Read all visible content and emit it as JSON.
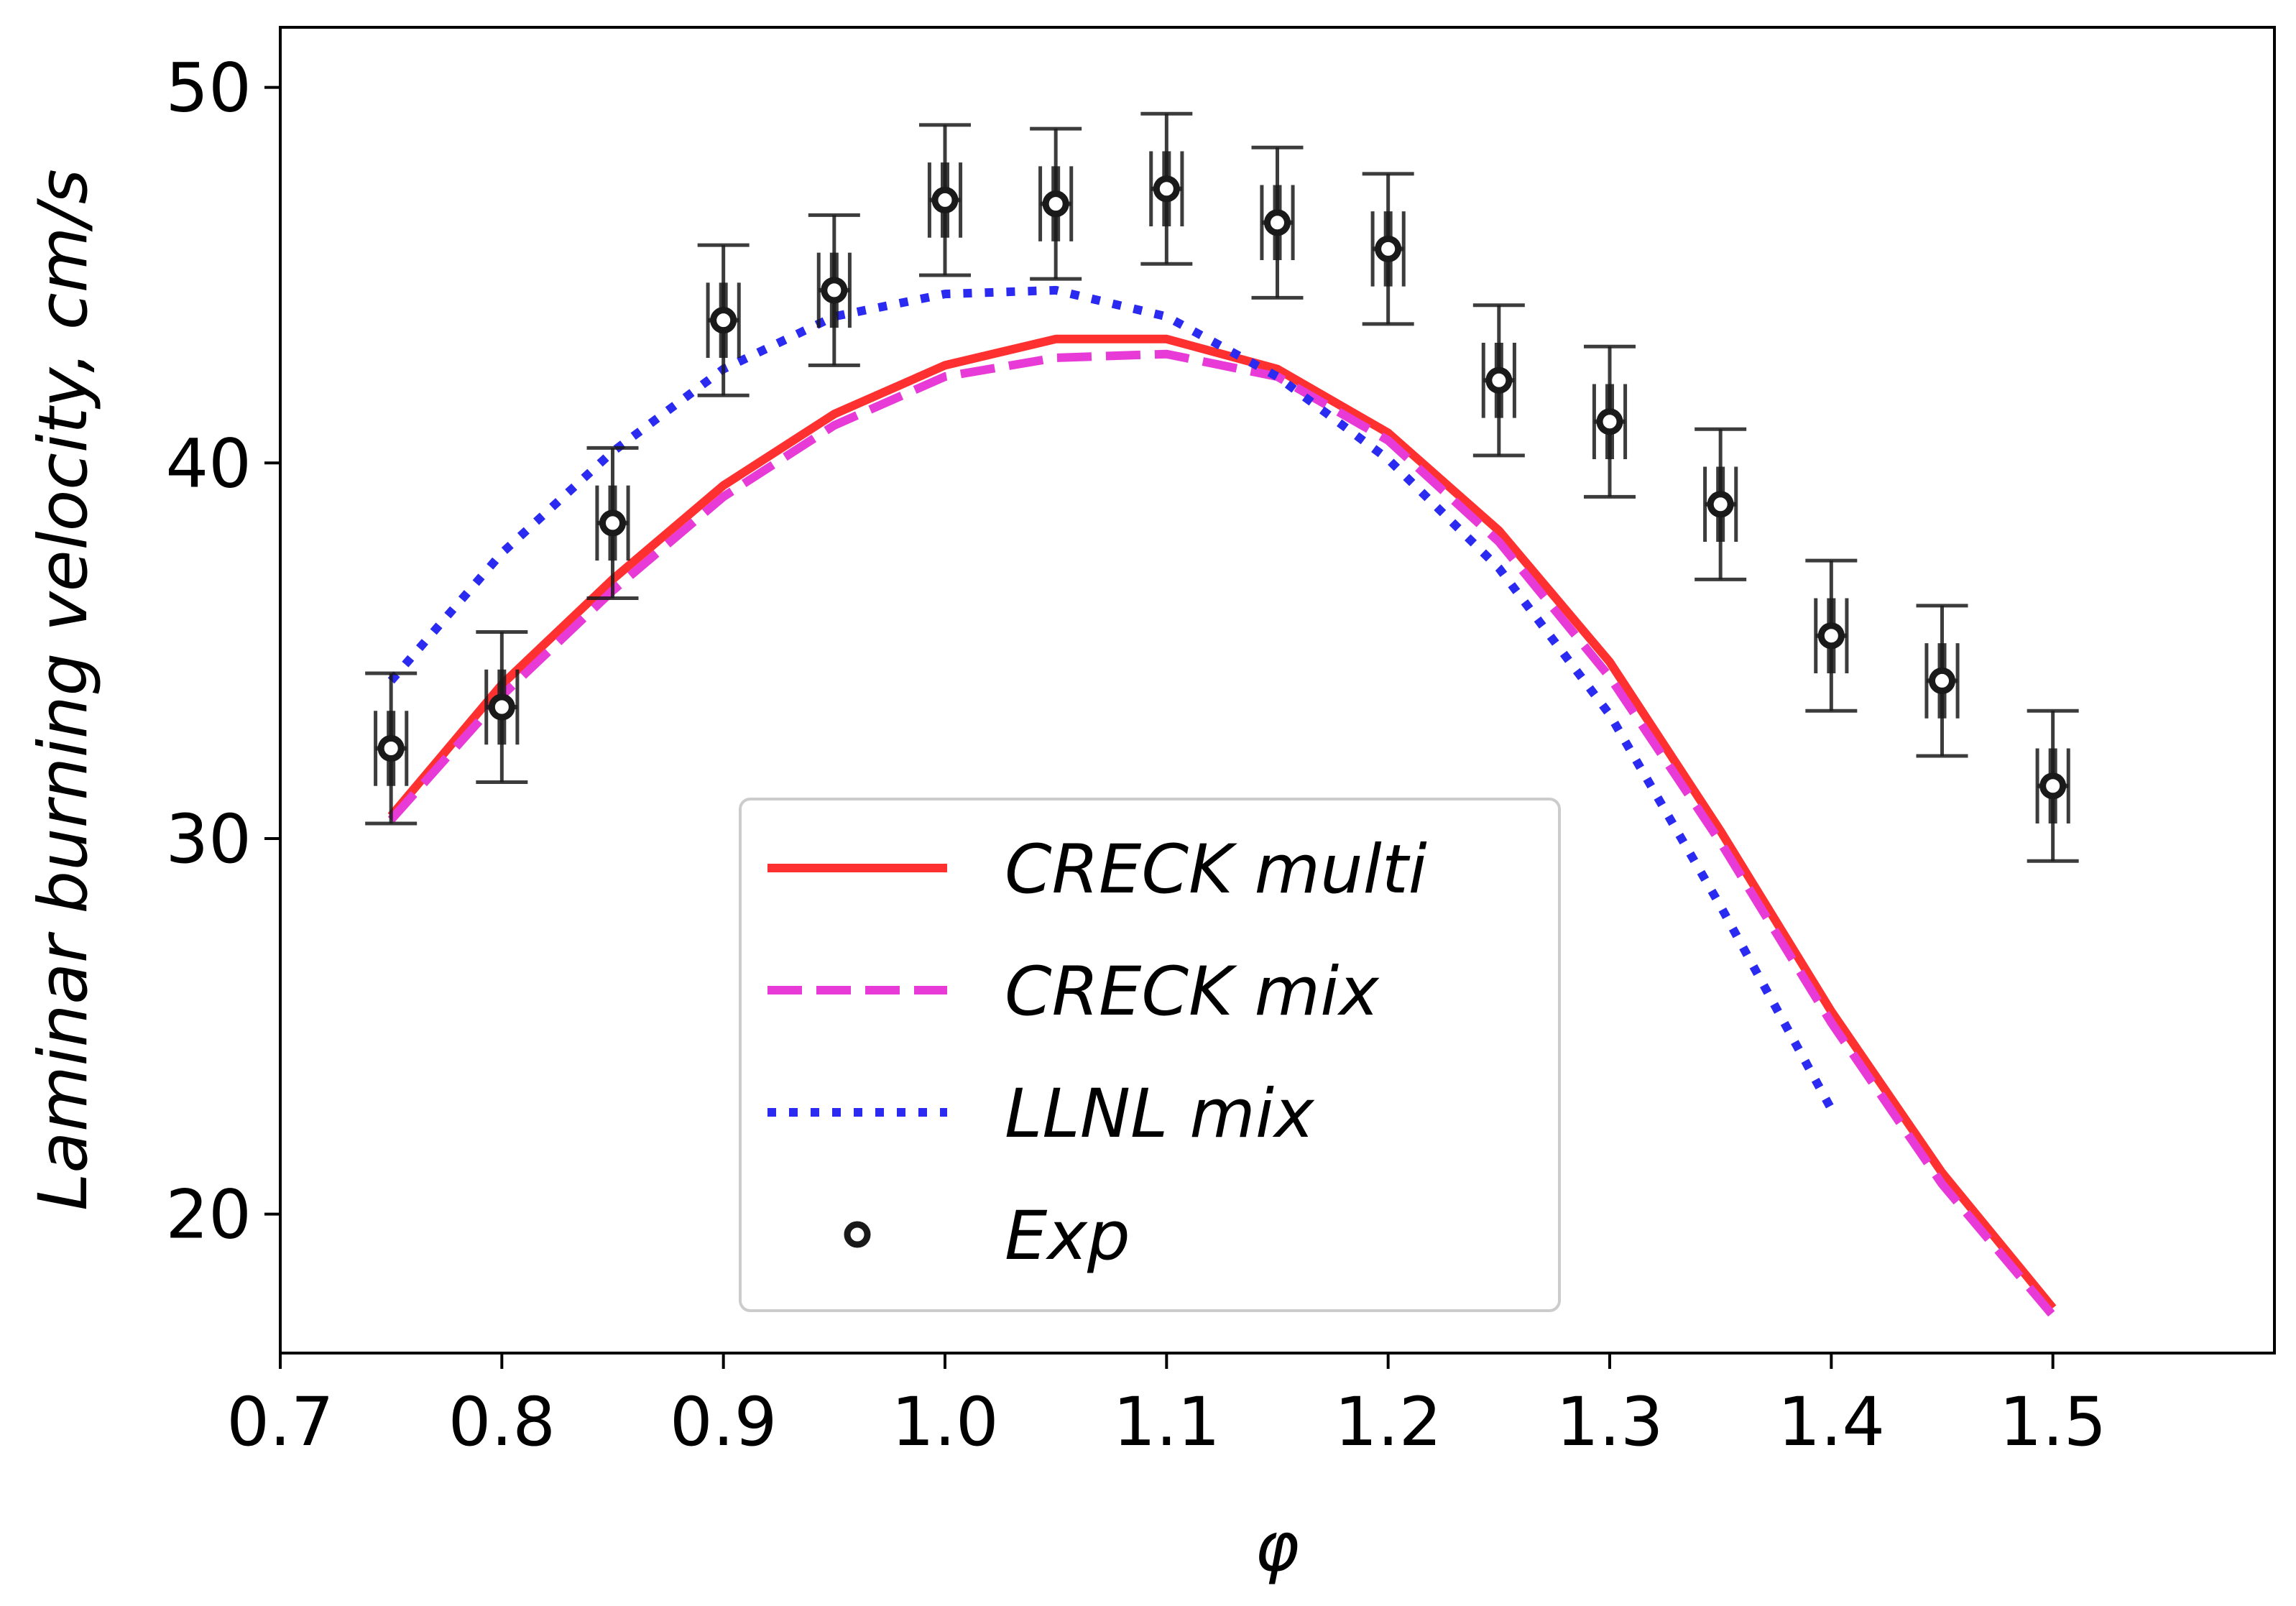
{
  "chart_data": {
    "type": "line",
    "title": "",
    "xlabel": "φ",
    "ylabel": "Laminar burning velocity, cm/s",
    "xlim": [
      0.7,
      1.6
    ],
    "ylim": [
      16.3,
      51.6
    ],
    "xticks": [
      0.7,
      0.8,
      0.9,
      1.0,
      1.1,
      1.2,
      1.3,
      1.4,
      1.5
    ],
    "xtick_labels": [
      "0.7",
      "0.8",
      "0.9",
      "1.0",
      "1.1",
      "1.2",
      "1.3",
      "1.4",
      "1.5"
    ],
    "yticks": [
      20,
      30,
      40,
      50
    ],
    "ytick_labels": [
      "20",
      "30",
      "40",
      "50"
    ],
    "grid": false,
    "legend_position": "lower-center",
    "series": [
      {
        "name": "CRECK multi",
        "style": "solid",
        "color": "#ff3030",
        "x": [
          0.75,
          0.8,
          0.85,
          0.9,
          0.95,
          1.0,
          1.05,
          1.1,
          1.15,
          1.2,
          1.25,
          1.3,
          1.35,
          1.4,
          1.45,
          1.5
        ],
        "y": [
          30.6,
          34.1,
          36.9,
          39.4,
          41.3,
          42.6,
          43.3,
          43.3,
          42.5,
          40.8,
          38.2,
          34.7,
          30.2,
          25.4,
          21.1,
          17.5
        ]
      },
      {
        "name": "CRECK mix",
        "style": "dashed",
        "color": "#e83ad6",
        "x": [
          0.75,
          0.8,
          0.85,
          0.9,
          0.95,
          1.0,
          1.05,
          1.1,
          1.15,
          1.2,
          1.25,
          1.3,
          1.35,
          1.4,
          1.45,
          1.5
        ],
        "y": [
          30.5,
          33.8,
          36.6,
          39.1,
          41.0,
          42.3,
          42.8,
          42.9,
          42.3,
          40.6,
          37.9,
          34.3,
          29.9,
          25.1,
          20.8,
          17.3
        ]
      },
      {
        "name": "LLNL mix",
        "style": "dotted",
        "color": "#2a2af0",
        "x": [
          0.75,
          0.8,
          0.85,
          0.9,
          0.95,
          1.0,
          1.05,
          1.1,
          1.15,
          1.2,
          1.25,
          1.3,
          1.35,
          1.4
        ],
        "y": [
          34.2,
          37.6,
          40.3,
          42.5,
          43.9,
          44.5,
          44.6,
          43.9,
          42.3,
          40.1,
          37.2,
          33.3,
          28.2,
          22.8
        ]
      }
    ],
    "experimental": {
      "name": "Exp",
      "color": "#1a1a1a",
      "x": [
        0.75,
        0.8,
        0.85,
        0.9,
        0.95,
        1.0,
        1.05,
        1.1,
        1.15,
        1.2,
        1.25,
        1.3,
        1.35,
        1.4,
        1.45,
        1.5
      ],
      "y": [
        32.4,
        33.5,
        38.4,
        43.8,
        44.6,
        47.0,
        46.9,
        47.3,
        46.4,
        45.7,
        42.2,
        41.1,
        38.9,
        35.4,
        34.2,
        31.4
      ],
      "y_err": [
        2.0,
        2.0,
        2.0,
        2.0,
        2.0,
        2.0,
        2.0,
        2.0,
        2.0,
        2.0,
        2.0,
        2.0,
        2.0,
        2.0,
        2.0,
        2.0
      ],
      "y_err_inner": [
        1.0,
        1.0,
        1.0,
        1.0,
        1.0,
        1.0,
        1.0,
        1.0,
        1.0,
        1.0,
        1.0,
        1.0,
        1.0,
        1.0,
        1.0,
        1.0
      ],
      "x_err": [
        0.007,
        0.007,
        0.007,
        0.007,
        0.007,
        0.007,
        0.007,
        0.007,
        0.007,
        0.007,
        0.007,
        0.007,
        0.007,
        0.007,
        0.007,
        0.007
      ]
    }
  }
}
